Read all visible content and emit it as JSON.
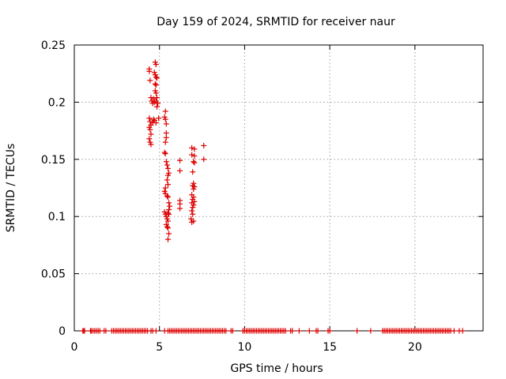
{
  "chart_data": {
    "type": "scatter",
    "title": "Day 159 of 2024, SRMTID for receiver naur",
    "xlabel": "GPS time / hours",
    "ylabel": "SRMTID / TECUs",
    "xlim": [
      0,
      24
    ],
    "ylim": [
      0,
      0.25
    ],
    "xticks": [
      0,
      5,
      10,
      15,
      20
    ],
    "xtick_labels": [
      "0",
      "5",
      "10",
      "15",
      "20"
    ],
    "yticks": [
      0,
      0.05,
      0.1,
      0.15,
      0.2,
      0.25
    ],
    "ytick_labels": [
      "0",
      "0.05",
      "0.1",
      "0.15",
      "0.2",
      "0.25"
    ],
    "grid": true,
    "marker": "plus",
    "color": "#dd0000",
    "series": [
      {
        "points": [
          [
            4.4,
            0.229
          ],
          [
            4.4,
            0.227
          ],
          [
            4.45,
            0.219
          ],
          [
            4.5,
            0.204
          ],
          [
            4.55,
            0.201
          ],
          [
            4.6,
            0.199
          ],
          [
            4.65,
            0.203
          ],
          [
            4.7,
            0.2
          ],
          [
            4.4,
            0.186
          ],
          [
            4.45,
            0.183
          ],
          [
            4.5,
            0.18
          ],
          [
            4.4,
            0.178
          ],
          [
            4.45,
            0.176
          ],
          [
            4.5,
            0.172
          ],
          [
            4.4,
            0.168
          ],
          [
            4.45,
            0.165
          ],
          [
            4.5,
            0.163
          ],
          [
            4.6,
            0.182
          ],
          [
            4.7,
            0.184
          ],
          [
            4.8,
            0.182
          ],
          [
            4.65,
            0.185
          ],
          [
            4.75,
            0.235
          ],
          [
            4.8,
            0.233
          ],
          [
            4.7,
            0.226
          ],
          [
            4.75,
            0.224
          ],
          [
            4.8,
            0.222
          ],
          [
            4.85,
            0.221
          ],
          [
            4.75,
            0.216
          ],
          [
            4.8,
            0.215
          ],
          [
            4.75,
            0.21
          ],
          [
            4.8,
            0.208
          ],
          [
            4.85,
            0.204
          ],
          [
            4.8,
            0.201
          ],
          [
            4.9,
            0.199
          ],
          [
            4.85,
            0.196
          ],
          [
            4.95,
            0.186
          ],
          [
            5.35,
            0.192
          ],
          [
            5.3,
            0.187
          ],
          [
            5.35,
            0.185
          ],
          [
            5.4,
            0.181
          ],
          [
            5.4,
            0.173
          ],
          [
            5.4,
            0.169
          ],
          [
            5.35,
            0.165
          ],
          [
            5.3,
            0.156
          ],
          [
            5.35,
            0.155
          ],
          [
            5.4,
            0.148
          ],
          [
            5.45,
            0.145
          ],
          [
            5.5,
            0.142
          ],
          [
            5.55,
            0.138
          ],
          [
            5.5,
            0.136
          ],
          [
            5.45,
            0.132
          ],
          [
            5.5,
            0.128
          ],
          [
            5.35,
            0.125
          ],
          [
            5.3,
            0.122
          ],
          [
            5.35,
            0.12
          ],
          [
            5.45,
            0.118
          ],
          [
            5.5,
            0.117
          ],
          [
            5.55,
            0.112
          ],
          [
            5.6,
            0.109
          ],
          [
            5.55,
            0.106
          ],
          [
            5.3,
            0.104
          ],
          [
            5.35,
            0.102
          ],
          [
            5.4,
            0.1
          ],
          [
            5.45,
            0.098
          ],
          [
            5.5,
            0.096
          ],
          [
            5.4,
            0.093
          ],
          [
            5.45,
            0.091
          ],
          [
            5.5,
            0.103
          ],
          [
            5.55,
            0.102
          ],
          [
            5.5,
            0.09
          ],
          [
            5.55,
            0.085
          ],
          [
            5.5,
            0.08
          ],
          [
            6.2,
            0.149
          ],
          [
            6.2,
            0.14
          ],
          [
            6.2,
            0.114
          ],
          [
            6.2,
            0.111
          ],
          [
            6.2,
            0.107
          ],
          [
            6.9,
            0.16
          ],
          [
            7.05,
            0.159
          ],
          [
            6.9,
            0.154
          ],
          [
            7.05,
            0.153
          ],
          [
            7.0,
            0.148
          ],
          [
            7.05,
            0.147
          ],
          [
            6.95,
            0.139
          ],
          [
            7.0,
            0.129
          ],
          [
            6.95,
            0.127
          ],
          [
            7.05,
            0.126
          ],
          [
            7.0,
            0.124
          ],
          [
            6.9,
            0.119
          ],
          [
            7.0,
            0.117
          ],
          [
            6.95,
            0.115
          ],
          [
            7.05,
            0.113
          ],
          [
            6.9,
            0.112
          ],
          [
            7.0,
            0.11
          ],
          [
            6.95,
            0.108
          ],
          [
            6.9,
            0.105
          ],
          [
            6.95,
            0.102
          ],
          [
            6.85,
            0.098
          ],
          [
            7.0,
            0.096
          ],
          [
            6.9,
            0.095
          ],
          [
            7.6,
            0.162
          ],
          [
            7.6,
            0.15
          ]
        ]
      },
      {
        "points": [
          [
            0.5,
            0
          ],
          [
            0.55,
            0
          ],
          [
            0.6,
            0
          ],
          [
            0.95,
            0
          ],
          [
            1.0,
            0
          ],
          [
            1.1,
            0
          ],
          [
            1.2,
            0
          ],
          [
            1.3,
            0
          ],
          [
            1.4,
            0
          ],
          [
            1.5,
            0
          ],
          [
            1.75,
            0
          ],
          [
            1.85,
            0
          ],
          [
            2.2,
            0
          ],
          [
            2.3,
            0
          ],
          [
            2.4,
            0
          ],
          [
            2.5,
            0
          ],
          [
            2.6,
            0
          ],
          [
            2.7,
            0
          ],
          [
            2.8,
            0
          ],
          [
            2.9,
            0
          ],
          [
            3.0,
            0
          ],
          [
            3.1,
            0
          ],
          [
            3.2,
            0
          ],
          [
            3.3,
            0
          ],
          [
            3.4,
            0
          ],
          [
            3.5,
            0
          ],
          [
            3.6,
            0
          ],
          [
            3.7,
            0
          ],
          [
            3.8,
            0
          ],
          [
            3.9,
            0
          ],
          [
            4.0,
            0
          ],
          [
            4.1,
            0
          ],
          [
            4.2,
            0
          ],
          [
            4.3,
            0
          ],
          [
            4.5,
            0
          ],
          [
            4.6,
            0
          ],
          [
            4.8,
            0
          ],
          [
            5.3,
            0
          ],
          [
            5.5,
            0
          ],
          [
            5.6,
            0
          ],
          [
            5.7,
            0
          ],
          [
            5.8,
            0
          ],
          [
            5.9,
            0
          ],
          [
            6.0,
            0
          ],
          [
            6.1,
            0
          ],
          [
            6.2,
            0
          ],
          [
            6.3,
            0
          ],
          [
            6.4,
            0
          ],
          [
            6.5,
            0
          ],
          [
            6.6,
            0
          ],
          [
            6.7,
            0
          ],
          [
            6.8,
            0
          ],
          [
            6.9,
            0
          ],
          [
            7.0,
            0
          ],
          [
            7.1,
            0
          ],
          [
            7.2,
            0
          ],
          [
            7.3,
            0
          ],
          [
            7.4,
            0
          ],
          [
            7.5,
            0
          ],
          [
            7.6,
            0
          ],
          [
            7.7,
            0
          ],
          [
            7.8,
            0
          ],
          [
            7.9,
            0
          ],
          [
            8.0,
            0
          ],
          [
            8.1,
            0
          ],
          [
            8.2,
            0
          ],
          [
            8.3,
            0
          ],
          [
            8.4,
            0
          ],
          [
            8.5,
            0
          ],
          [
            8.6,
            0
          ],
          [
            8.7,
            0
          ],
          [
            8.8,
            0
          ],
          [
            8.9,
            0
          ],
          [
            9.2,
            0
          ],
          [
            9.3,
            0
          ],
          [
            9.9,
            0
          ],
          [
            10.0,
            0
          ],
          [
            10.1,
            0
          ],
          [
            10.2,
            0
          ],
          [
            10.3,
            0
          ],
          [
            10.4,
            0
          ],
          [
            10.5,
            0
          ],
          [
            10.6,
            0
          ],
          [
            10.7,
            0
          ],
          [
            10.8,
            0
          ],
          [
            10.9,
            0
          ],
          [
            11.0,
            0
          ],
          [
            11.1,
            0
          ],
          [
            11.2,
            0
          ],
          [
            11.3,
            0
          ],
          [
            11.4,
            0
          ],
          [
            11.5,
            0
          ],
          [
            11.6,
            0
          ],
          [
            11.7,
            0
          ],
          [
            11.8,
            0
          ],
          [
            11.9,
            0
          ],
          [
            12.0,
            0
          ],
          [
            12.1,
            0
          ],
          [
            12.2,
            0
          ],
          [
            12.3,
            0
          ],
          [
            12.4,
            0
          ],
          [
            12.7,
            0
          ],
          [
            12.8,
            0
          ],
          [
            13.2,
            0
          ],
          [
            13.8,
            0
          ],
          [
            14.2,
            0
          ],
          [
            14.3,
            0
          ],
          [
            14.9,
            0
          ],
          [
            15.0,
            0
          ],
          [
            16.6,
            0
          ],
          [
            17.4,
            0
          ],
          [
            18.1,
            0
          ],
          [
            18.2,
            0
          ],
          [
            18.3,
            0
          ],
          [
            18.4,
            0
          ],
          [
            18.5,
            0
          ],
          [
            18.6,
            0
          ],
          [
            18.7,
            0
          ],
          [
            18.8,
            0
          ],
          [
            18.9,
            0
          ],
          [
            19.0,
            0
          ],
          [
            19.1,
            0
          ],
          [
            19.2,
            0
          ],
          [
            19.3,
            0
          ],
          [
            19.4,
            0
          ],
          [
            19.5,
            0
          ],
          [
            19.6,
            0
          ],
          [
            19.7,
            0
          ],
          [
            19.8,
            0
          ],
          [
            19.9,
            0
          ],
          [
            20.0,
            0
          ],
          [
            20.1,
            0
          ],
          [
            20.2,
            0
          ],
          [
            20.3,
            0
          ],
          [
            20.4,
            0
          ],
          [
            20.5,
            0
          ],
          [
            20.6,
            0
          ],
          [
            20.7,
            0
          ],
          [
            20.8,
            0
          ],
          [
            20.9,
            0
          ],
          [
            21.0,
            0
          ],
          [
            21.1,
            0
          ],
          [
            21.2,
            0
          ],
          [
            21.3,
            0
          ],
          [
            21.4,
            0
          ],
          [
            21.5,
            0
          ],
          [
            21.6,
            0
          ],
          [
            21.7,
            0
          ],
          [
            21.8,
            0
          ],
          [
            21.9,
            0
          ],
          [
            22.0,
            0
          ],
          [
            22.1,
            0
          ],
          [
            22.3,
            0
          ],
          [
            22.6,
            0
          ],
          [
            22.8,
            0
          ]
        ]
      }
    ]
  }
}
